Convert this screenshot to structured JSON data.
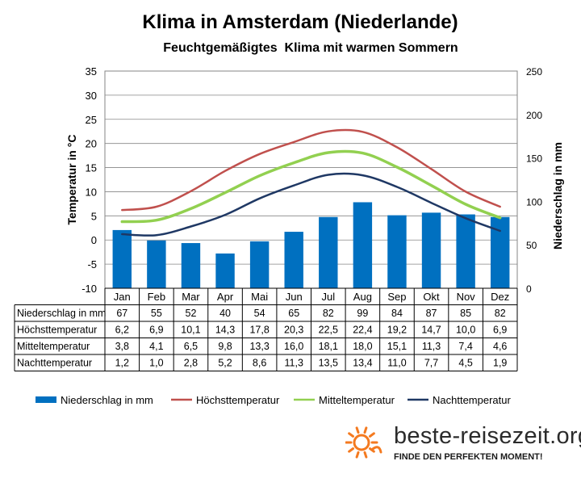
{
  "title": "Klima in Amsterdam (Niederlande)",
  "subtitle": "Feuchtgemäßigtes  Klima mit warmen Sommern",
  "brand": {
    "name": "beste-reisezeit.org",
    "tagline": "FINDE DEN PERFEKTEN MOMENT!"
  },
  "colors": {
    "precip": "#0070c0",
    "max": "#c0504d",
    "mean": "#92d050",
    "min": "#1f3864",
    "brand_sun": "#f47a20"
  },
  "chart_data": {
    "type": "bar",
    "categories": [
      "Jan",
      "Feb",
      "Mar",
      "Apr",
      "Mai",
      "Jun",
      "Jul",
      "Aug",
      "Sep",
      "Okt",
      "Nov",
      "Dez"
    ],
    "ylabel": "Temperatur in °C",
    "y2label": "Niederschlag in mm",
    "ylim": [
      -10,
      35
    ],
    "y2lim": [
      0,
      250
    ],
    "yticks": [
      "35",
      "30",
      "25",
      "20",
      "15",
      "10",
      "5",
      "0",
      "-5",
      "-10"
    ],
    "y2ticks": [
      "250",
      "200",
      "150",
      "100",
      "50",
      "0"
    ],
    "grid": true,
    "legend_position": "bottom",
    "series": [
      {
        "name": "Niederschlag in mm",
        "label": "Niederschlag in mm",
        "type": "bar",
        "axis": "right",
        "values": [
          67,
          55,
          52,
          40,
          54,
          65,
          82,
          99,
          84,
          87,
          85,
          82
        ],
        "display": [
          "67",
          "55",
          "52",
          "40",
          "54",
          "65",
          "82",
          "99",
          "84",
          "87",
          "85",
          "82"
        ]
      },
      {
        "name": "Höchsttemperatur",
        "label": "Höchsttemperatur",
        "type": "line",
        "axis": "left",
        "values": [
          6.2,
          6.9,
          10.1,
          14.3,
          17.8,
          20.3,
          22.5,
          22.4,
          19.2,
          14.7,
          10.0,
          6.9
        ],
        "display": [
          "6,2",
          "6,9",
          "10,1",
          "14,3",
          "17,8",
          "20,3",
          "22,5",
          "22,4",
          "19,2",
          "14,7",
          "10,0",
          "6,9"
        ]
      },
      {
        "name": "Mitteltemperatur",
        "label": "Mitteltemperatur",
        "type": "line",
        "axis": "left",
        "values": [
          3.8,
          4.1,
          6.5,
          9.8,
          13.3,
          16.0,
          18.1,
          18.0,
          15.1,
          11.3,
          7.4,
          4.6
        ],
        "display": [
          "3,8",
          "4,1",
          "6,5",
          "9,8",
          "13,3",
          "16,0",
          "18,1",
          "18,0",
          "15,1",
          "11,3",
          "7,4",
          "4,6"
        ]
      },
      {
        "name": "Nachttemperatur",
        "label": "Nachttemperatur",
        "type": "line",
        "axis": "left",
        "values": [
          1.2,
          1.0,
          2.8,
          5.2,
          8.6,
          11.3,
          13.5,
          13.4,
          11.0,
          7.7,
          4.5,
          1.9
        ],
        "display": [
          "1,2",
          "1,0",
          "2,8",
          "5,2",
          "8,6",
          "11,3",
          "13,5",
          "13,4",
          "11,0",
          "7,7",
          "4,5",
          "1,9"
        ]
      }
    ]
  }
}
